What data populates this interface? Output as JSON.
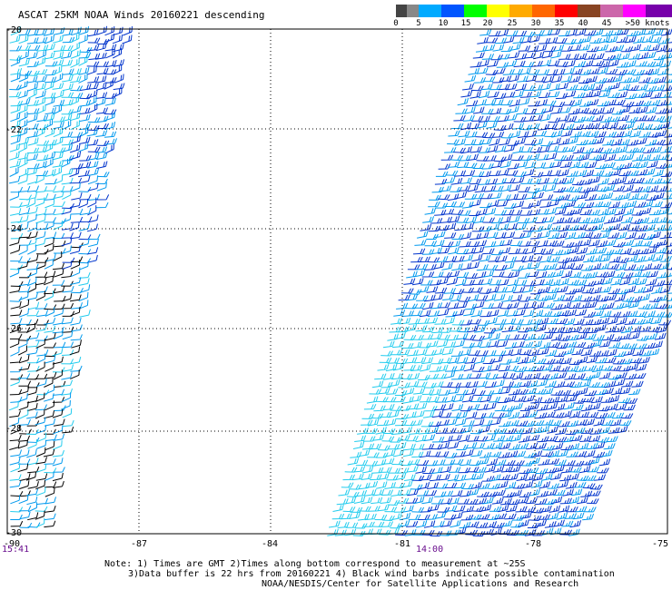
{
  "title": "ASCAT 25KM NOAA Winds 20160221 descending",
  "legend": {
    "colors": [
      "#444444",
      "#888888",
      "#00aaff",
      "#0055ff",
      "#00ff00",
      "#ffff00",
      "#ffaa00",
      "#ff6600",
      "#ff0000",
      "#884422",
      "#cc66aa",
      "#ff00ff",
      "#7700aa"
    ],
    "labels": [
      "0",
      "5",
      "10",
      "15",
      "20",
      "25",
      "30",
      "35",
      "40",
      "45",
      ">50 knots"
    ]
  },
  "map": {
    "lat_ticks": [
      "-20",
      "-22",
      "-24",
      "-26",
      "-28",
      "-30"
    ],
    "lon_ticks": [
      "-90",
      "-87",
      "-84",
      "-81",
      "-78",
      "-75"
    ],
    "times": [
      "15:41",
      "14:00"
    ],
    "grid": true,
    "lat_range": [
      -30,
      -20
    ],
    "lon_range": [
      -90,
      -75
    ],
    "barb_colors": {
      "light": "#22ccee",
      "medium": "#0099ee",
      "dark": "#0033cc",
      "contaminated": "#000000"
    }
  },
  "notes": {
    "line1": "Note: 1) Times are GMT 2)Times along bottom correspond to measurement at ~25S",
    "line2": "3)Data buffer is 22 hrs from 20160221 4) Black wind barbs indicate possible contamination",
    "line3": "NOAA/NESDIS/Center for Satellite Applications and Research"
  }
}
